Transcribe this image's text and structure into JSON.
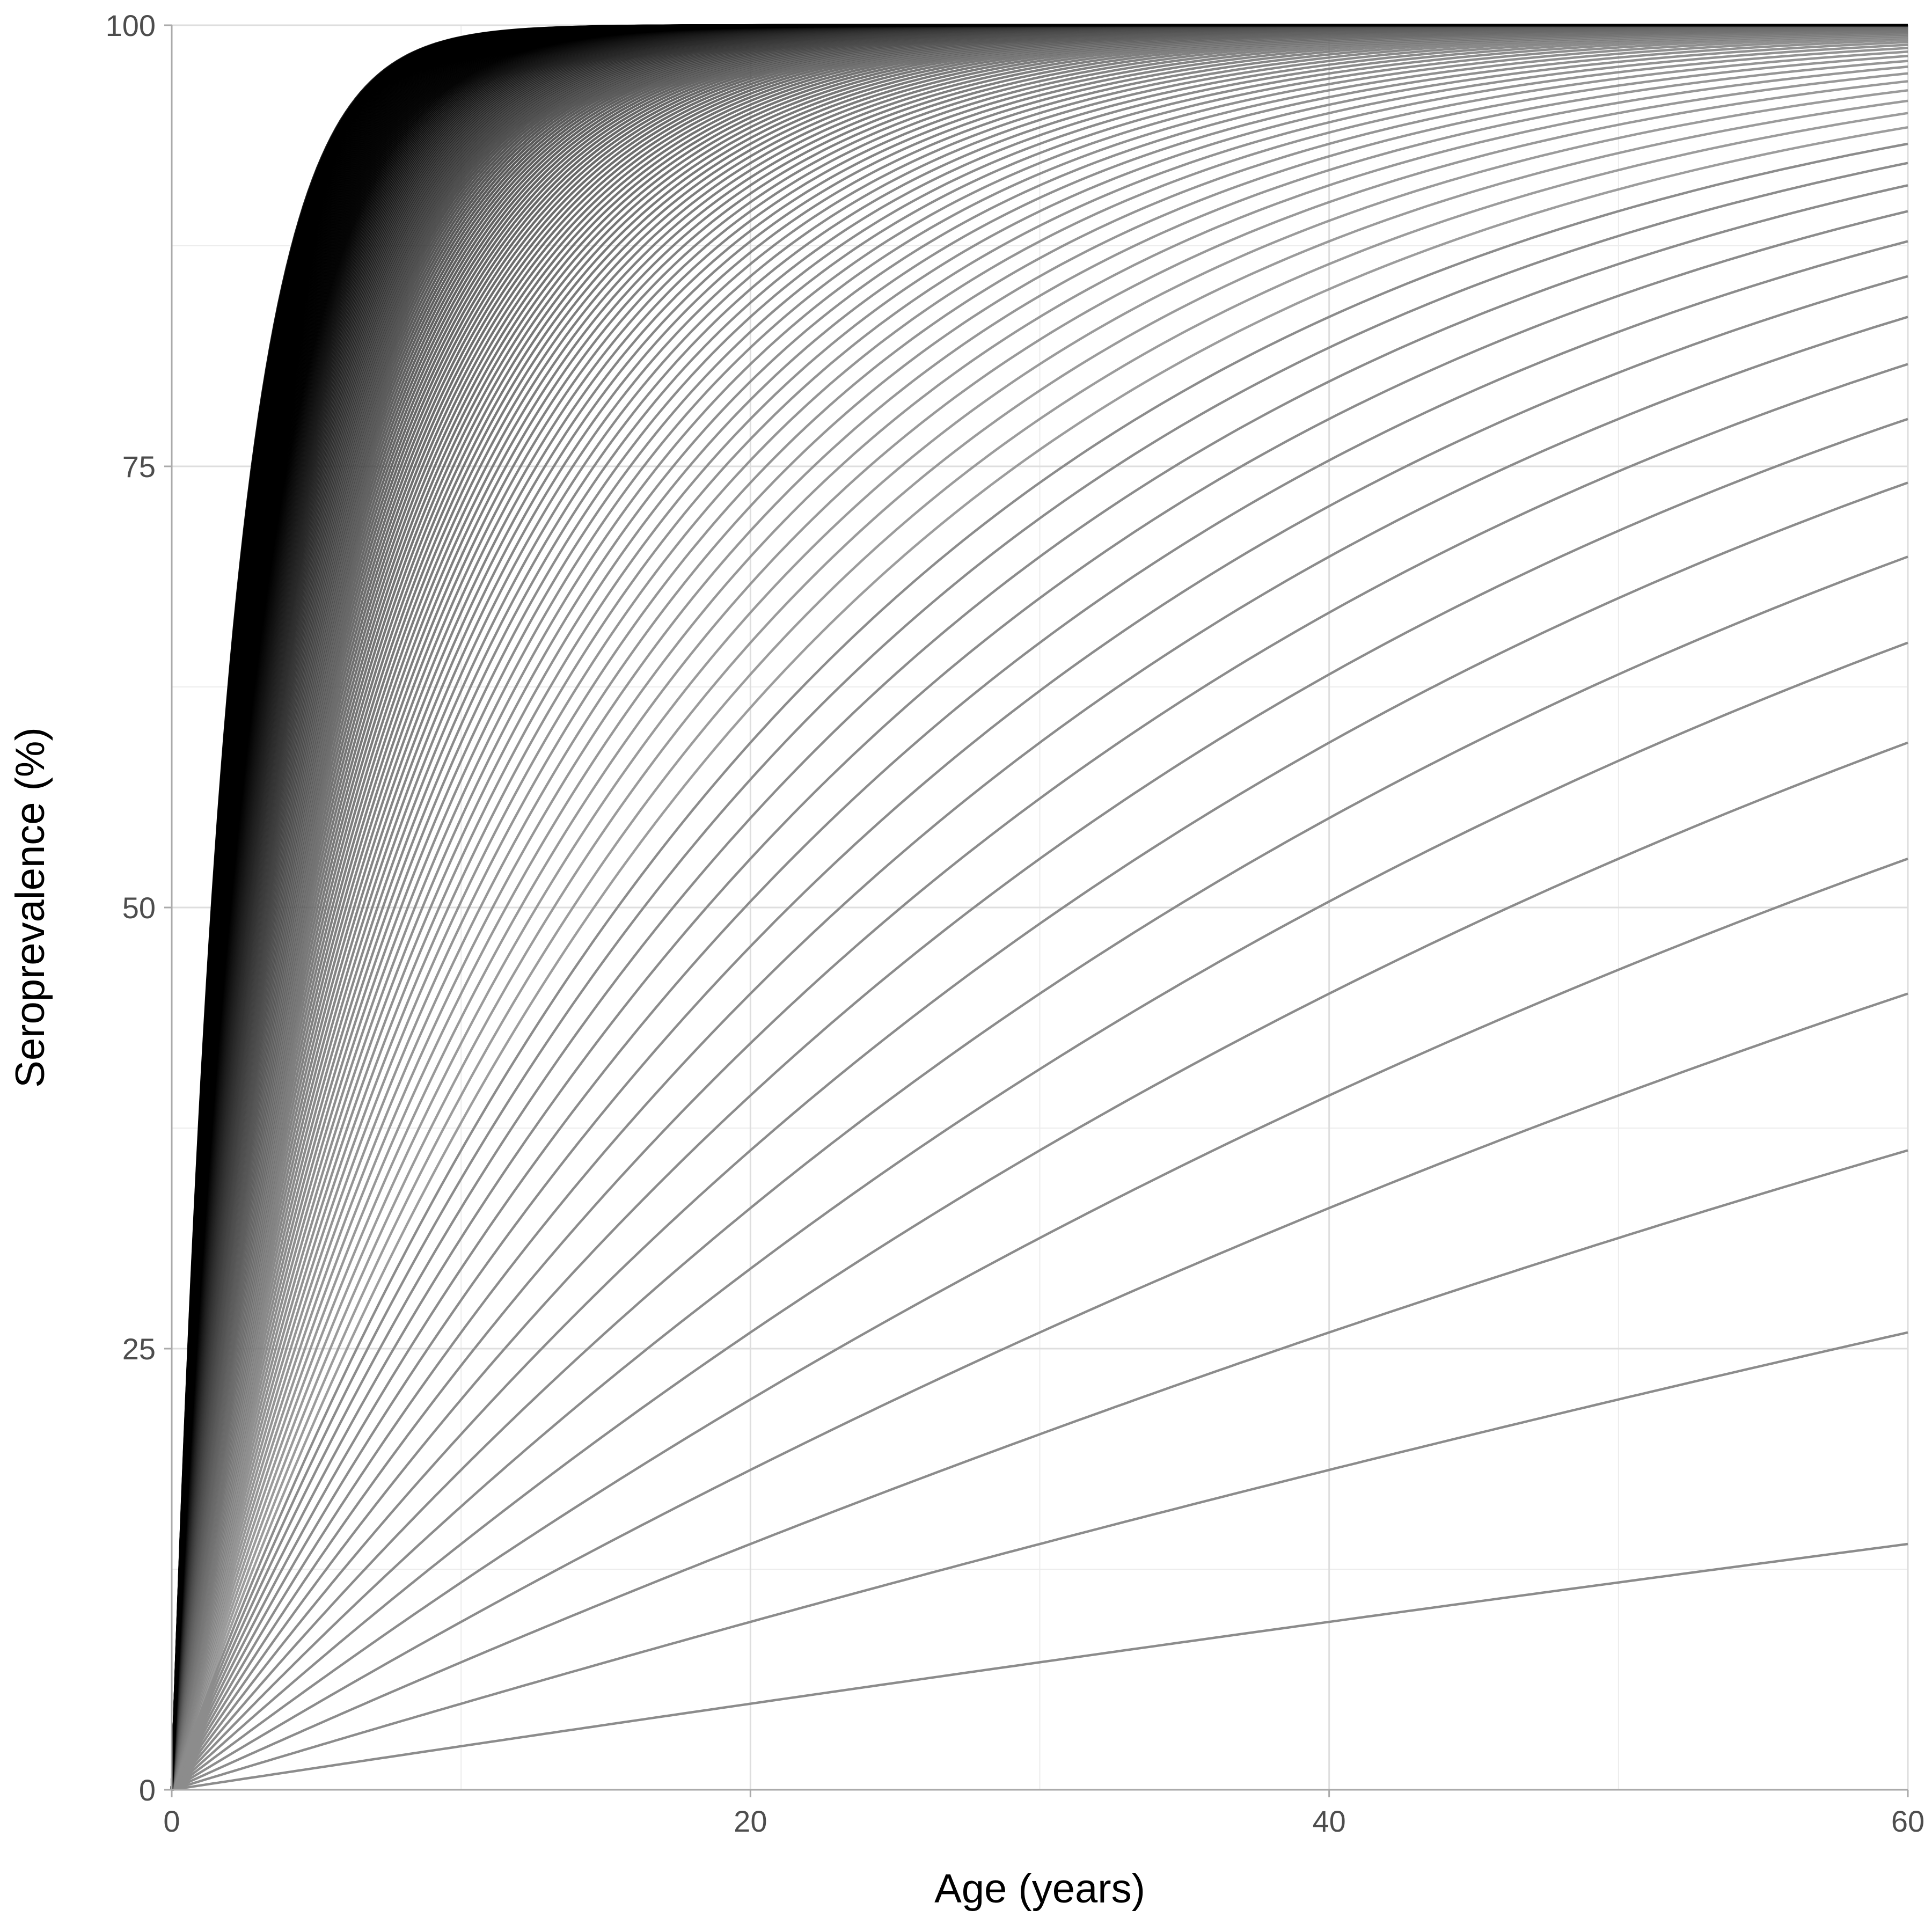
{
  "chart_data": {
    "type": "line",
    "title": "",
    "xlabel": "Age (years)",
    "ylabel": "Seroprevalence (%)",
    "xlim": [
      0,
      60
    ],
    "ylim": [
      0,
      100
    ],
    "x_ticks": [
      0,
      20,
      40,
      60
    ],
    "y_ticks": [
      0,
      25,
      50,
      75,
      100
    ],
    "x_tick_labels": [
      "0",
      "20",
      "40",
      "60"
    ],
    "y_tick_labels": [
      "0",
      "25",
      "50",
      "75",
      "100"
    ],
    "grid": true,
    "legend": "none",
    "model": "seroprevalence = 100 * (1 - exp(-lambda * age))",
    "x": [
      0,
      2,
      4,
      6,
      8,
      10,
      12,
      14,
      16,
      18,
      20,
      22,
      24,
      26,
      28,
      30,
      32,
      34,
      36,
      38,
      40,
      42,
      44,
      46,
      48,
      50,
      52,
      54,
      56,
      58,
      60
    ],
    "series_lambda_start": 0.0025,
    "series_lambda_step": 0.0025,
    "series_count": 200,
    "series_values_at_age_60": [
      13.9,
      25.9,
      36.2,
      45.1,
      52.8,
      59.3,
      65.0,
      69.9,
      74.1,
      77.7,
      80.8,
      83.5,
      85.8,
      87.8,
      89.5,
      90.9,
      92.2,
      93.3,
      94.2,
      95.0
    ],
    "colors": {
      "background": "#ffffff",
      "panel": "#ffffff",
      "grid_major": "#dedede",
      "grid_minor": "#ececec",
      "axis_line": "#aaaaaa",
      "line_light": "#8c8c8c",
      "line_dark": "#000000"
    }
  }
}
